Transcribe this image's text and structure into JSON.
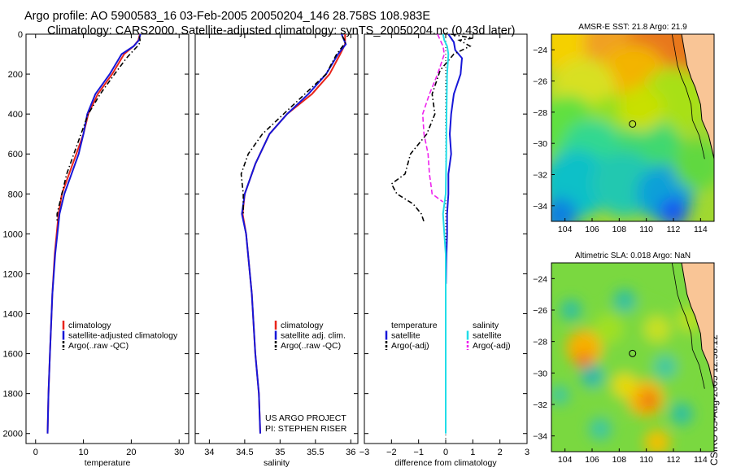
{
  "figure": {
    "title_line1": "Argo profile: AO 5900583_16 03-Feb-2005 20050204_146 28.758S 108.983E",
    "title_line2": "Climatology: CARS2000. Satellite-adjusted climatology: synTS_20050204.nc (0.43d later)",
    "credit": "CSIRO 05-Aug-2005 12:58:12",
    "project": "US ARGO PROJECT",
    "pi": "PI: STEPHEN RISER"
  },
  "colors": {
    "climatology": "#e8241a",
    "satellite": "#1616d8",
    "argo": "#000000",
    "salinity_satellite": "#22dde8",
    "salinity_argo_adj": "#ee22ee",
    "land": "#f9c596"
  },
  "chart_data": [
    {
      "type": "line",
      "panel": "temperature",
      "xlabel": "temperature",
      "ylabel": "",
      "xlim": [
        -2,
        32
      ],
      "ylim": [
        2050,
        0
      ],
      "xticks": [
        0,
        10,
        20,
        30
      ],
      "yticks": [
        0,
        200,
        400,
        600,
        800,
        1000,
        1200,
        1400,
        1600,
        1800,
        2000
      ],
      "legend": [
        "climatology",
        "satellite-adjusted climatology",
        "Argo(..raw -QC)"
      ],
      "legend_position": "lower-right",
      "series": [
        {
          "name": "climatology",
          "style": "solid",
          "color": "#e8241a",
          "x": [
            21.8,
            21.5,
            20.5,
            18.5,
            16,
            13,
            11,
            10,
            8.5,
            7,
            5.5,
            4.8,
            4,
            3.5,
            3,
            2.7,
            2.5
          ],
          "y": [
            0,
            30,
            60,
            100,
            200,
            300,
            400,
            500,
            600,
            700,
            800,
            900,
            1100,
            1300,
            1600,
            1800,
            2000
          ]
        },
        {
          "name": "satellite-adjusted climatology",
          "style": "solid",
          "color": "#1616d8",
          "x": [
            21.9,
            21.6,
            20.5,
            18,
            15.5,
            12.5,
            10.8,
            10,
            9,
            7.5,
            6,
            5,
            4.1,
            3.5,
            3,
            2.7,
            2.5
          ],
          "y": [
            0,
            30,
            60,
            100,
            200,
            300,
            400,
            500,
            600,
            700,
            800,
            900,
            1100,
            1300,
            1600,
            1800,
            2000
          ]
        },
        {
          "name": "Argo(..raw -QC)",
          "style": "dashed",
          "color": "#000000",
          "x": [
            21.7,
            21.9,
            21.3,
            20.5,
            19,
            16.5,
            13.5,
            11,
            9.5,
            8,
            6.5,
            5.5,
            4.5,
            4.5
          ],
          "y": [
            10,
            40,
            60,
            80,
            120,
            200,
            300,
            400,
            500,
            600,
            700,
            800,
            900,
            940
          ]
        }
      ]
    },
    {
      "type": "line",
      "panel": "salinity",
      "xlabel": "salinity",
      "ylabel": "",
      "xlim": [
        33.8,
        36.1
      ],
      "ylim": [
        2050,
        0
      ],
      "xticks": [
        34,
        34.5,
        35,
        35.5,
        36
      ],
      "legend": [
        "climatology",
        "satellite adj. clim.",
        "Argo(..raw -QC)"
      ],
      "legend_position": "lower-right",
      "series": [
        {
          "name": "climatology",
          "style": "solid",
          "color": "#e8241a",
          "x": [
            35.92,
            35.92,
            35.85,
            35.7,
            35.45,
            35.1,
            34.85,
            34.65,
            34.5,
            34.47,
            34.52,
            34.6,
            34.65,
            34.7,
            34.72
          ],
          "y": [
            0,
            50,
            100,
            200,
            300,
            400,
            500,
            650,
            800,
            900,
            1000,
            1300,
            1600,
            1800,
            2000
          ]
        },
        {
          "name": "satellite adj. clim.",
          "style": "solid",
          "color": "#1616d8",
          "x": [
            35.87,
            35.93,
            35.82,
            35.65,
            35.4,
            35.1,
            34.85,
            34.65,
            34.5,
            34.46,
            34.52,
            34.6,
            34.65,
            34.7,
            34.72
          ],
          "y": [
            0,
            50,
            100,
            200,
            300,
            400,
            500,
            650,
            800,
            900,
            1000,
            1300,
            1600,
            1800,
            2000
          ]
        },
        {
          "name": "Argo(..raw -QC)",
          "style": "dashed",
          "color": "#000000",
          "x": [
            35.88,
            35.93,
            35.8,
            35.65,
            35.35,
            35.05,
            34.75,
            34.55,
            34.45,
            34.48,
            34.48
          ],
          "y": [
            10,
            40,
            100,
            200,
            300,
            400,
            500,
            600,
            700,
            800,
            900
          ]
        }
      ]
    },
    {
      "type": "line",
      "panel": "difference",
      "xlabel": "difference from climatology",
      "ylabel": "",
      "xlim": [
        -3,
        3
      ],
      "ylim": [
        2050,
        0
      ],
      "xticks": [
        -3,
        -2,
        -1,
        0,
        1,
        2,
        3
      ],
      "legend": [
        "temperature",
        "satellite",
        "Argo(-adj)",
        "salinity",
        "satellite",
        "Argo(-adj)"
      ],
      "legend_position": "lower",
      "series": [
        {
          "name": "satellite",
          "group": "temperature",
          "style": "solid",
          "color": "#1616d8",
          "x": [
            0.1,
            0.3,
            0.35,
            0.6,
            0.55,
            0.3,
            0.2,
            0.15,
            0.2,
            0.1,
            0.1,
            0.05,
            0.05,
            0.03,
            0.02,
            0.01
          ],
          "y": [
            0,
            40,
            80,
            120,
            200,
            300,
            400,
            500,
            600,
            700,
            800,
            900,
            1000,
            1100,
            1150,
            1250
          ]
        },
        {
          "name": "Argo(-adj)",
          "group": "temperature",
          "style": "dashed",
          "color": "#000000",
          "x": [
            0.2,
            1.0,
            0.5,
            0.9,
            0.3,
            -0.2,
            -0.5,
            -0.4,
            -0.7,
            -1.3,
            -1.5,
            -2.0,
            -1.8,
            -1.2,
            -0.9,
            -0.8
          ],
          "y": [
            0,
            20,
            30,
            60,
            100,
            180,
            300,
            400,
            500,
            600,
            700,
            750,
            800,
            850,
            900,
            940
          ]
        },
        {
          "name": "satellite",
          "group": "salinity",
          "style": "solid",
          "color": "#22dde8",
          "x": [
            -0.1,
            -0.05,
            0.05,
            0.1,
            0.05,
            0.03,
            0.02,
            0.0,
            -0.1,
            -0.05,
            0.0,
            0.0,
            0.0
          ],
          "y": [
            0,
            30,
            60,
            100,
            200,
            400,
            600,
            800,
            900,
            1000,
            1100,
            1200,
            2000
          ]
        },
        {
          "name": "Argo(-adj)",
          "group": "salinity",
          "style": "dashed",
          "color": "#ee22ee",
          "x": [
            -0.3,
            -0.2,
            -0.1,
            -0.05,
            -0.3,
            -0.6,
            -0.85,
            -0.8,
            -0.65,
            -0.6,
            -0.55,
            -0.5,
            -0.3,
            -0.1
          ],
          "y": [
            0,
            30,
            60,
            100,
            200,
            300,
            400,
            500,
            600,
            700,
            750,
            800,
            820,
            840
          ]
        }
      ]
    },
    {
      "type": "heatmap",
      "panel": "sst-map",
      "title": "AMSR-E SST: 21.8 Argo: 21.9",
      "xlim": [
        103,
        115
      ],
      "ylim": [
        -35,
        -23
      ],
      "xticks": [
        104,
        106,
        108,
        110,
        112,
        114
      ],
      "yticks": [
        -24,
        -26,
        -28,
        -30,
        -32,
        -34
      ],
      "marker": {
        "lon": 108.983,
        "lat": -28.758
      }
    },
    {
      "type": "heatmap",
      "panel": "sla-map",
      "title": "Altimetric SLA: 0.018 Argo: NaN",
      "xlim": [
        103,
        115
      ],
      "ylim": [
        -35,
        -23
      ],
      "xticks": [
        104,
        106,
        108,
        110,
        112,
        114
      ],
      "yticks": [
        -24,
        -26,
        -28,
        -30,
        -32,
        -34
      ],
      "marker": {
        "lon": 108.983,
        "lat": -28.758
      }
    }
  ]
}
